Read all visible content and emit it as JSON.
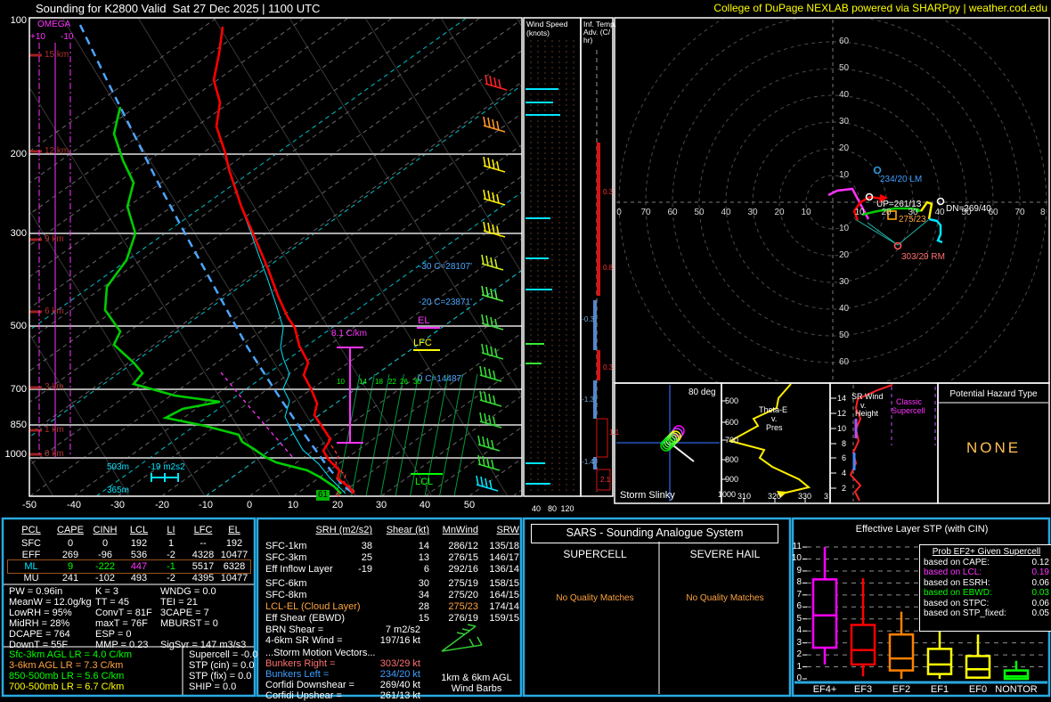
{
  "header": {
    "title": "Sounding for K2800 Valid  Sat 27 Dec 2025 | 1100 UTC",
    "brand": "College of DuPage NEXLAB powered via SHARPpy | weather.cod.edu"
  },
  "skewt": {
    "pressures": [
      "100",
      "200",
      "300",
      "500",
      "700",
      "850",
      "1000"
    ],
    "heights": [
      "15 km",
      "12 km",
      "9 km",
      "6 km",
      "3 km",
      "1 km",
      "0 km"
    ],
    "omega": {
      "title": "OMEGA",
      "plus": "+10",
      "minus": "-10"
    },
    "temps": [
      "-50",
      "-40",
      "-30",
      "-20",
      "-10",
      "0",
      "10",
      "20",
      "30",
      "40",
      "50"
    ],
    "mixing": [
      "10",
      "14",
      "18",
      "22",
      "26",
      "30"
    ],
    "iso_m30": "-30 C=28107'",
    "iso_m20": "-20 C=23871'",
    "iso_0": "0 C=14487'",
    "el": "EL",
    "lfc": "LFC",
    "lcl": "LCL",
    "lapse_mid": "8.1 C/km",
    "h503": "503m",
    "h365": "365m",
    "shear_label": "-19 m2s2",
    "sfc_dewpoint": "61",
    "sfc_temp": "4"
  },
  "wind_panel": {
    "title1": "Wind Speed",
    "title2": "(knots)",
    "ticks": [
      "40",
      "80",
      "120"
    ]
  },
  "adv_panel": {
    "title1": "Inf. Temp.",
    "title2": "Adv. (C/",
    "title3": "hr)",
    "values": [
      "0.3",
      "0.8",
      "-0.3",
      "0.3",
      "-1.3",
      "1.1",
      "-1.4",
      "2.1"
    ]
  },
  "hodograph": {
    "x_labels": [
      "0",
      "70",
      "60",
      "50",
      "40",
      "30",
      "20",
      "10",
      "10",
      "20",
      "30",
      "40",
      "50",
      "60",
      "70",
      "8"
    ],
    "y_labels": [
      "60",
      "50",
      "40",
      "30",
      "20",
      "10",
      "10",
      "20",
      "30",
      "40",
      "50",
      "60"
    ],
    "lm": "234/20 LM",
    "up": "UP=261/13",
    "dn": "DN=269/40",
    "mean": "275/23",
    "rm": "303/29 RM"
  },
  "slinky": {
    "deg": "80 deg",
    "title": "Storm Slinky"
  },
  "thetae": {
    "t1": "Theta-E",
    "t2": "v.",
    "t3": "Pres",
    "y": [
      "500",
      "600",
      "700",
      "800",
      "900",
      "1000"
    ],
    "x": [
      "310",
      "320",
      "330",
      "3"
    ]
  },
  "srwind": {
    "t1": "SR Wind",
    "t2": "v.",
    "t3": "Height",
    "y": [
      "14",
      "12",
      "10",
      "8",
      "6",
      "4",
      "2"
    ],
    "c1": "Classic",
    "c2": "Supercell"
  },
  "hazard": {
    "title": "Potential Hazard Type",
    "value": "NONE"
  },
  "parcel_table": {
    "headers": [
      "PCL",
      "CAPE",
      "CINH",
      "LCL",
      "LI",
      "LFC",
      "EL"
    ],
    "rows": [
      {
        "cells": [
          "SFC",
          "0",
          "0",
          "192",
          "1",
          "--",
          "192"
        ]
      },
      {
        "cells": [
          "EFF",
          "269",
          "-96",
          "536",
          "-2",
          "4328",
          "10477"
        ]
      },
      {
        "cells": [
          "ML",
          "9",
          "-222",
          "447",
          "-1",
          "5517",
          "6328"
        ]
      },
      {
        "cells": [
          "MU",
          "241",
          "-102",
          "493",
          "-2",
          "4395",
          "10477"
        ]
      }
    ]
  },
  "thermo": {
    "col1": [
      "PW = 0.96in",
      "MeanW = 12.0g/kg",
      "LowRH = 95%",
      "MidRH = 28%",
      "DCAPE = 764",
      "DownT = 55F"
    ],
    "col2": [
      "K = 3",
      "TT = 45",
      "ConvT = 81F",
      "maxT = 76F",
      "ESP = 0",
      "MMP = 0.23"
    ],
    "col3": [
      "WNDG = 0.0",
      "TEI = 21",
      "3CAPE = 7",
      "MBURST = 0",
      "",
      "SigSvr = 147 m3/s3"
    ]
  },
  "lapse_rates": [
    "Sfc-3km AGL LR = 4.0 C/km",
    "3-6km AGL LR = 7.3 C/km",
    "850-500mb LR = 5.6 C/km",
    "700-500mb LR = 6.7 C/km"
  ],
  "composites": [
    "Supercell = -0.0",
    "STP (cin) = 0.0",
    "STP (fix) = 0.0",
    "SHIP = 0.0"
  ],
  "kinematics": {
    "headers": [
      "SRH (m2/s2)",
      "Shear (kt)",
      "MnWind",
      "SRW"
    ],
    "rows": [
      {
        "label": "SFC-1km",
        "srh": "38",
        "shear": "14",
        "mnwind": "286/12",
        "srw": "135/18"
      },
      {
        "label": "SFC-3km",
        "srh": "25",
        "shear": "13",
        "mnwind": "276/15",
        "srw": "146/17"
      },
      {
        "label": "Eff Inflow Layer",
        "srh": "-19",
        "shear": "6",
        "mnwind": "292/16",
        "srw": "136/14"
      },
      {
        "label": "SFC-6km",
        "srh": "",
        "shear": "30",
        "mnwind": "275/19",
        "srw": "158/15"
      },
      {
        "label": "SFC-8km",
        "srh": "",
        "shear": "34",
        "mnwind": "275/20",
        "srw": "164/15"
      },
      {
        "label": "LCL-EL (Cloud Layer)",
        "srh": "",
        "shear": "28",
        "mnwind": "275/23",
        "srw": "174/14"
      },
      {
        "label": "Eff Shear (EBWD)",
        "srh": "",
        "shear": "15",
        "mnwind": "276/19",
        "srw": "159/15"
      }
    ],
    "brn_label": "BRN Shear =",
    "brn_value": "7 m2/s2",
    "srw46_label": "4-6km SR Wind =",
    "srw46_value": "197/16 kt",
    "storm_motion_title": "...Storm Motion Vectors...",
    "bunkers_right_label": "Bunkers Right =",
    "bunkers_right_value": "303/29 kt",
    "bunkers_left_label": "Bunkers Left =",
    "bunkers_left_value": "234/20 kt",
    "corfidi_down_label": "Corfidi Downshear =",
    "corfidi_down_value": "269/40 kt",
    "corfidi_up_label": "Corfidi Upshear =",
    "corfidi_up_value": "261/13 kt",
    "barb_caption1": "1km & 6km AGL",
    "barb_caption2": "Wind Barbs"
  },
  "sars": {
    "title": "SARS - Sounding Analogue System",
    "col1": "SUPERCELL",
    "col2": "SEVERE HAIL",
    "empty1": "No Quality Matches",
    "empty2": "No Quality Matches"
  },
  "stp_panel": {
    "title": "Effective Layer STP (with CIN)",
    "y_labels": [
      "0",
      "1",
      "2",
      "3",
      "4",
      "5",
      "6",
      "7",
      "8",
      "9",
      "10",
      "11"
    ],
    "prob": {
      "title": "Prob EF2+ Given Supercell",
      "rows": [
        {
          "label": "based on CAPE:",
          "value": "0.12"
        },
        {
          "label": "based on LCL:",
          "value": "0.19"
        },
        {
          "label": "based on ESRH:",
          "value": "0.06"
        },
        {
          "label": "based on EBWD:",
          "value": "0.03"
        },
        {
          "label": "based on STPC:",
          "value": "0.06"
        },
        {
          "label": "based on STP_fixed:",
          "value": "0.05"
        }
      ]
    },
    "boxplot": {
      "type": "boxplot",
      "categories": [
        "EF4+",
        "EF3",
        "EF2",
        "EF1",
        "EF0",
        "NONTOR"
      ],
      "colors": [
        "#ff00ff",
        "#ff0000",
        "#ff8000",
        "#ffff00",
        "#ffff00",
        "#00ff00"
      ],
      "whisker_low": [
        1.2,
        0.2,
        0.0,
        0.0,
        0.0,
        0.0
      ],
      "q1": [
        2.6,
        1.2,
        0.7,
        0.4,
        0.1,
        0.0
      ],
      "median": [
        5.3,
        2.4,
        1.7,
        1.2,
        0.8,
        0.2
      ],
      "q3": [
        8.3,
        4.5,
        3.7,
        2.5,
        1.9,
        0.7
      ],
      "whisker_high": [
        11.0,
        8.4,
        5.6,
        4.5,
        3.7,
        1.5
      ],
      "ylim": [
        0,
        11
      ]
    }
  },
  "colors": {
    "panel_border": "#29a9e1",
    "ml_highlight": "#9c5218",
    "temp_trace": "#ff0000",
    "dewpoint_trace": "#00cc00",
    "parcel_trace": "#4da6ff",
    "wetbulb_trace": "#00e5ff"
  }
}
